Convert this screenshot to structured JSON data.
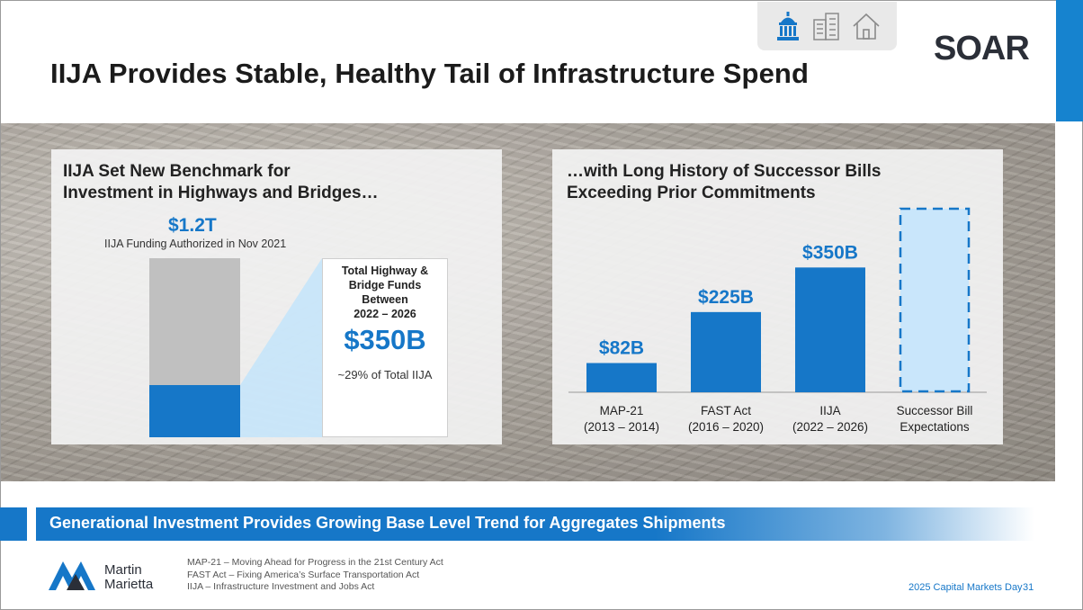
{
  "slide": {
    "title": "IIJA Provides Stable, Healthy Tail of Infrastructure Spend",
    "icons": [
      "capitol-icon",
      "buildings-icon",
      "house-icon"
    ],
    "brand_logo": "SOAR"
  },
  "left_panel": {
    "heading_line1": "IIJA Set New Benchmark for",
    "heading_line2": "Investment in Highways and Bridges…",
    "total_value": "$1.2T",
    "total_caption": "IIJA Funding Authorized in Nov 2021",
    "callout_heading_line1": "Total Highway &",
    "callout_heading_line2": "Bridge Funds Between",
    "callout_heading_line3": "2022 – 2026",
    "callout_value": "$350B",
    "callout_sub": "~29% of Total IIJA",
    "share_of_total": 0.29
  },
  "right_panel": {
    "heading_line1": "…with Long History of Successor Bills",
    "heading_line2": "Exceeding Prior Commitments"
  },
  "chart_data": {
    "type": "bar",
    "title": "…with Long History of Successor Bills Exceeding Prior Commitments",
    "categories": [
      "MAP-21 (2013 – 2014)",
      "FAST Act (2016 – 2020)",
      "IIJA (2022 – 2026)",
      "Successor Bill Expectations"
    ],
    "category_lines": [
      [
        "MAP-21",
        "(2013 – 2014)"
      ],
      [
        "FAST Act",
        "(2016 – 2020)"
      ],
      [
        "IIJA",
        "(2022 – 2026)"
      ],
      [
        "Successor Bill",
        "Expectations"
      ]
    ],
    "values": [
      82,
      225,
      350,
      null
    ],
    "labels": [
      "$82B",
      "$225B",
      "$350B",
      ""
    ],
    "projected_value": 515,
    "units": "$B",
    "ylim": [
      0,
      530
    ],
    "grid": false,
    "colors": {
      "bar": "#1677c8",
      "projected_fill": "#c9e6fb",
      "projected_border": "#1677c8"
    }
  },
  "banner": {
    "text": "Generational Investment Provides Growing Base Level Trend for Aggregates Shipments"
  },
  "footer": {
    "logo_line1": "Martin",
    "logo_line2": "Marietta",
    "footnotes": [
      "MAP-21 – Moving Ahead for Progress in the 21st Century Act",
      "FAST Act – Fixing America’s Surface Transportation Act",
      "IIJA – Infrastructure Investment and Jobs Act"
    ],
    "event": "2025 Capital Markets Day",
    "page_number": "31"
  },
  "colors": {
    "accent": "#1677c8",
    "gray_bar": "#c0c0c0",
    "light_blue": "#c9e6fb"
  }
}
